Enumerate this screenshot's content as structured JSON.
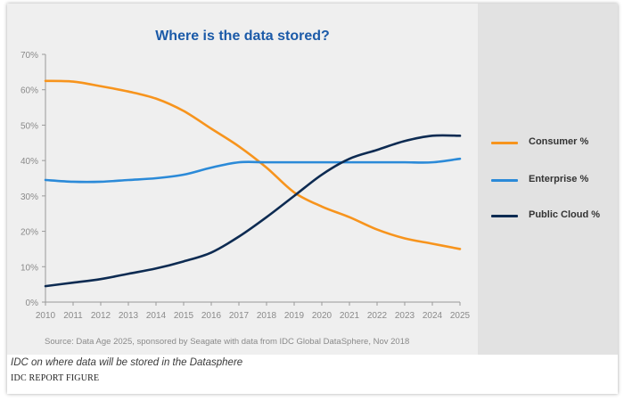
{
  "chart_data": {
    "type": "line",
    "title": "Where is the data stored?",
    "xlabel": "",
    "ylabel": "",
    "categories": [
      "2010",
      "2011",
      "2012",
      "2013",
      "2014",
      "2015",
      "2016",
      "2017",
      "2018",
      "2019",
      "2020",
      "2021",
      "2022",
      "2023",
      "2024",
      "2025"
    ],
    "y_ticks": [
      "0%",
      "10%",
      "20%",
      "30%",
      "40%",
      "50%",
      "60%",
      "70%"
    ],
    "ylim": [
      0,
      70
    ],
    "grid": false,
    "legend_position": "right",
    "series": [
      {
        "name": "Consumer %",
        "color": "#f7941d",
        "values": [
          62.5,
          62.3,
          61,
          59.5,
          57.5,
          54,
          49,
          44,
          38,
          31,
          27,
          24,
          20.5,
          18,
          16.5,
          15
        ]
      },
      {
        "name": "Enterprise %",
        "color": "#2b8ad8",
        "values": [
          34.5,
          34,
          34,
          34.5,
          35,
          36,
          38,
          39.5,
          39.5,
          39.5,
          39.5,
          39.5,
          39.5,
          39.5,
          39.5,
          40.5
        ]
      },
      {
        "name": "Public Cloud %",
        "color": "#0d2b52",
        "values": [
          4.5,
          5.5,
          6.5,
          8,
          9.5,
          11.5,
          14,
          18.5,
          24,
          30,
          36,
          40.5,
          43,
          45.5,
          47,
          47
        ]
      }
    ],
    "source": "Source: Data Age 2025, sponsored by Seagate with data from IDC Global DataSphere, Nov 2018"
  },
  "caption": "IDC on where data will be stored in the Datasphere",
  "credit": "IDC REPORT FIGURE"
}
